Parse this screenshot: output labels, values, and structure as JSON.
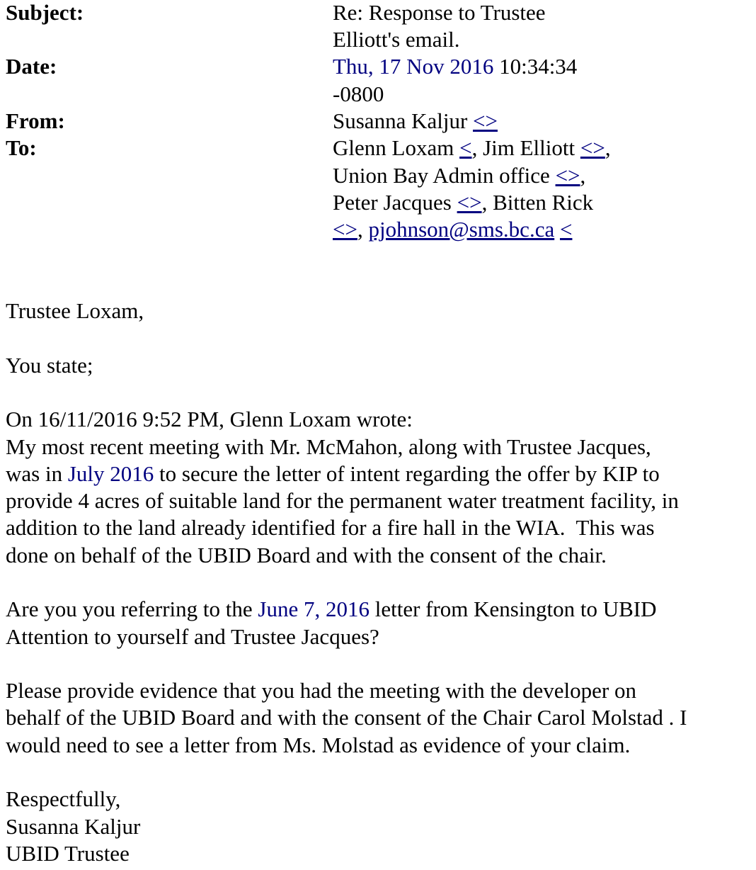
{
  "header": {
    "subject_label": "Subject:",
    "subject_lines": [
      "Re: Response to Trustee",
      "Elliott's email."
    ],
    "date_label": "Date:",
    "date_highlight": "Thu, 17 Nov 2016",
    "date_time": " 10:34:34",
    "date_tz": "-0800",
    "from_label": "From:",
    "from_name": "Susanna Kaljur ",
    "from_link": "<>",
    "to_label": "To:",
    "to": {
      "r1a": "Glenn Loxam ",
      "r1l1": "<",
      "r1b": ", Jim Elliott ",
      "r1l2": "<>",
      "r1c": ",",
      "r2a": "Union Bay Admin office ",
      "r2l": "<>",
      "r2b": ",",
      "r3a": "Peter Jacques ",
      "r3l": "<>",
      "r3b": ", Bitten Rick",
      "r4l1": "<>",
      "r4a": ", ",
      "r4l2": "pjohnson@sms.bc.ca",
      "r4b": " ",
      "r4l3": "<"
    }
  },
  "body": {
    "greeting": "Trustee Loxam,",
    "you_state": "You state;",
    "quote_intro": "On 16/11/2016 9:52 PM, Glenn Loxam wrote:",
    "q1": "My most recent meeting with Mr. McMahon, along with Trustee Jacques,",
    "q2a": "was in ",
    "q2date": "July 2016",
    "q2b": " to secure the letter of intent regarding the offer by KIP to",
    "q3": "provide 4 acres of suitable land for the permanent water treatment facility, in",
    "q4": "addition to the land already identified for a fire hall in the WIA.  This was",
    "q5": "done on behalf of the UBID Board and with the consent of the chair.",
    "p1a": "Are you you referring to the ",
    "p1date": "June 7, 2016",
    "p1b": " letter from Kensington to UBID",
    "p1c": "Attention to yourself and Trustee Jacques?",
    "p2a": "Please provide evidence that you had the meeting with the developer on",
    "p2b": "behalf of the UBID Board and with the consent of the Chair Carol Molstad . I",
    "p2c": "would need to see a letter from Ms. Molstad as evidence of your claim.",
    "closing": "Respectfully,",
    "sig_name": "Susanna Kaljur",
    "sig_title": "UBID Trustee"
  },
  "colors": {
    "link": "#000080",
    "text": "#000000"
  }
}
